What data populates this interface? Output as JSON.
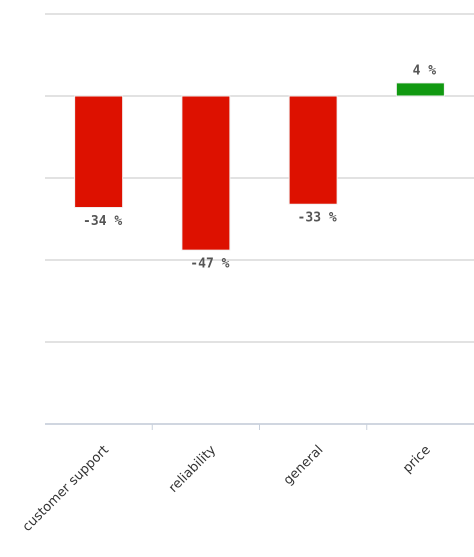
{
  "chart_data": {
    "type": "bar",
    "categories": [
      "customer support",
      "reliability",
      "general",
      "price"
    ],
    "values": [
      -34,
      -47,
      -33,
      4
    ],
    "value_labels": [
      "-34 %",
      "-47 %",
      "-33 %",
      "4 %"
    ],
    "colors": [
      "#dd1100",
      "#dd1100",
      "#dd1100",
      "#119911"
    ],
    "ylim": [
      -100,
      25
    ],
    "yticks": [
      -100,
      -75,
      -50,
      -25,
      0,
      25
    ],
    "grid": true
  }
}
